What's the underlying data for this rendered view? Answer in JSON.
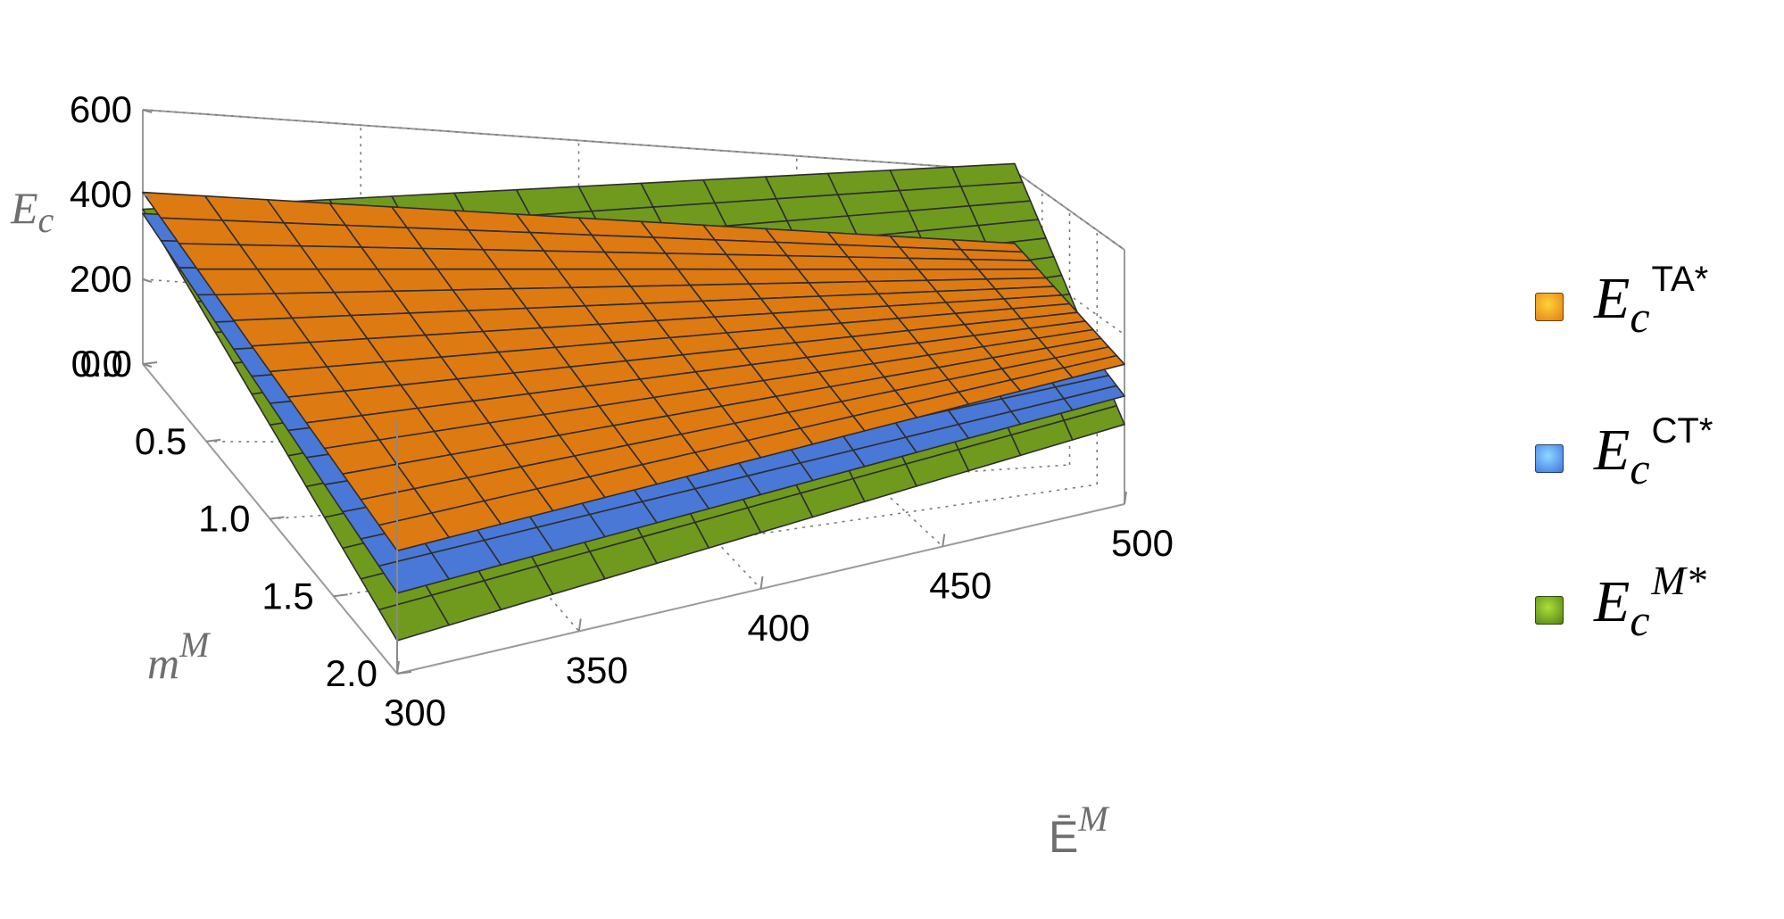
{
  "chart_data": {
    "type": "surface3d",
    "xlabel": "Ē",
    "xlabel_sup": "M",
    "ylabel": "m",
    "ylabel_sup": "M",
    "zlabel": "E",
    "zlabel_sub": "c",
    "x_range": [
      300,
      500
    ],
    "y_range": [
      0.0,
      2.0
    ],
    "z_range": [
      0,
      600
    ],
    "x_ticks": [
      "300",
      "350",
      "400",
      "450",
      "500"
    ],
    "y_ticks": [
      "0.0",
      "0.5",
      "1.0",
      "1.5",
      "2.0"
    ],
    "z_ticks": [
      "0.0",
      "200",
      "400",
      "600"
    ],
    "grid": true,
    "legend_position": "right",
    "series": [
      {
        "id": "M",
        "label_main": "E",
        "label_sub": "c",
        "label_sup": "M*",
        "color": "#6f9a1e",
        "corners_z": {
          "x300_y0": 365,
          "x500_y0": 618,
          "x300_y2": 78,
          "x500_y2": 188
        }
      },
      {
        "id": "CT",
        "label_main": "E",
        "label_sub": "c",
        "label_sup": "CT*",
        "color": "#4a78d6",
        "corners_z": {
          "x300_y0": 355,
          "x500_y0": 410,
          "x300_y2": 190,
          "x500_y2": 255
        }
      },
      {
        "id": "TA",
        "label_main": "E",
        "label_sub": "c",
        "label_sup": "TA*",
        "color": "#de7a12",
        "corners_z": {
          "x300_y0": 405,
          "x500_y0": 430,
          "x300_y2": 290,
          "x500_y2": 330
        }
      }
    ]
  }
}
